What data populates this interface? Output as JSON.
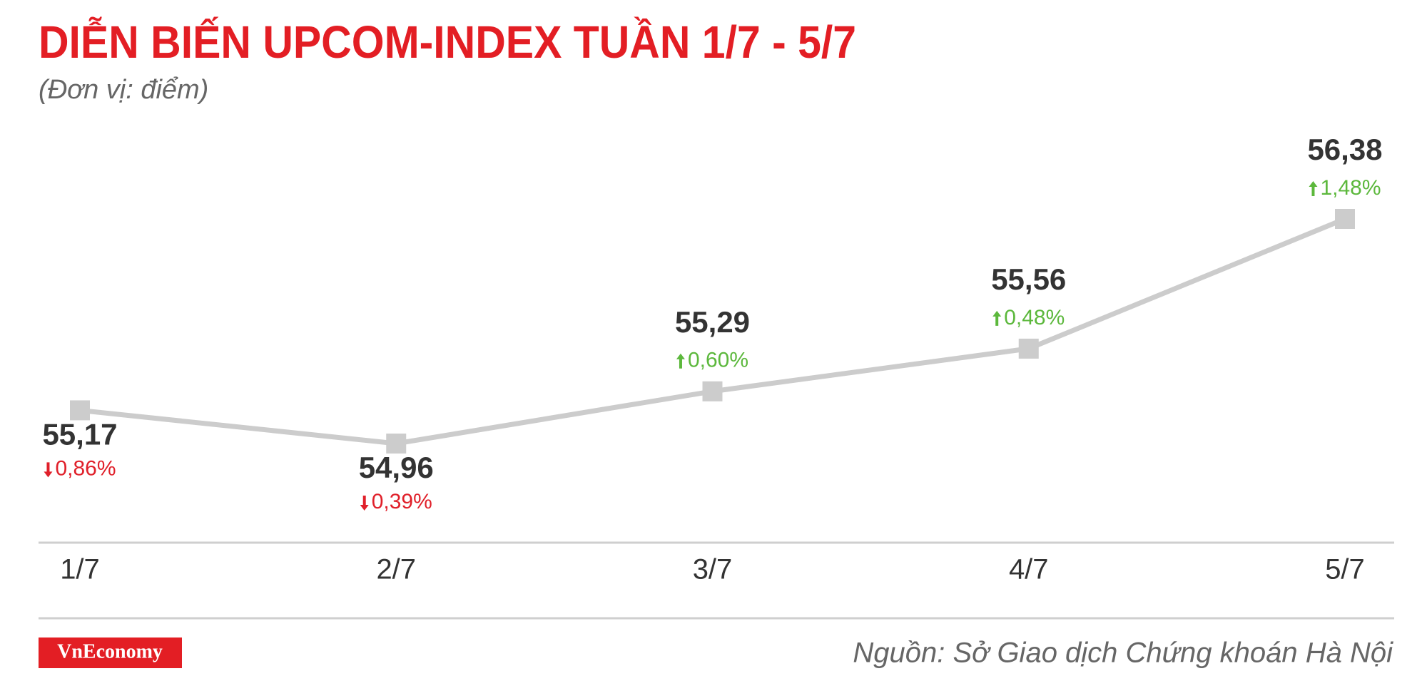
{
  "chart_data": {
    "type": "line",
    "title": "DIỄN BIẾN UPCOM-INDEX TUẦN 1/7 - 5/7",
    "subtitle": "(Đơn vị: điểm)",
    "categories": [
      "1/7",
      "2/7",
      "3/7",
      "4/7",
      "5/7"
    ],
    "series": [
      {
        "color": "#cccccc",
        "values": [
          55.17,
          54.96,
          55.29,
          55.56,
          56.38
        ],
        "value_labels": [
          "55,17",
          "54,96",
          "55,29",
          "55,56",
          "56,38"
        ],
        "changes": [
          -0.86,
          -0.39,
          0.6,
          0.48,
          1.48
        ],
        "change_labels": [
          "0,86%",
          "0,39%",
          "0,60%",
          "0,48%",
          "1,48%"
        ]
      }
    ],
    "up_color": "#5cb83c",
    "down_color": "#e0202a",
    "brand": "VnEconomy",
    "source": "Nguồn: Sở Giao dịch Chứng khoán Hà Nội"
  }
}
